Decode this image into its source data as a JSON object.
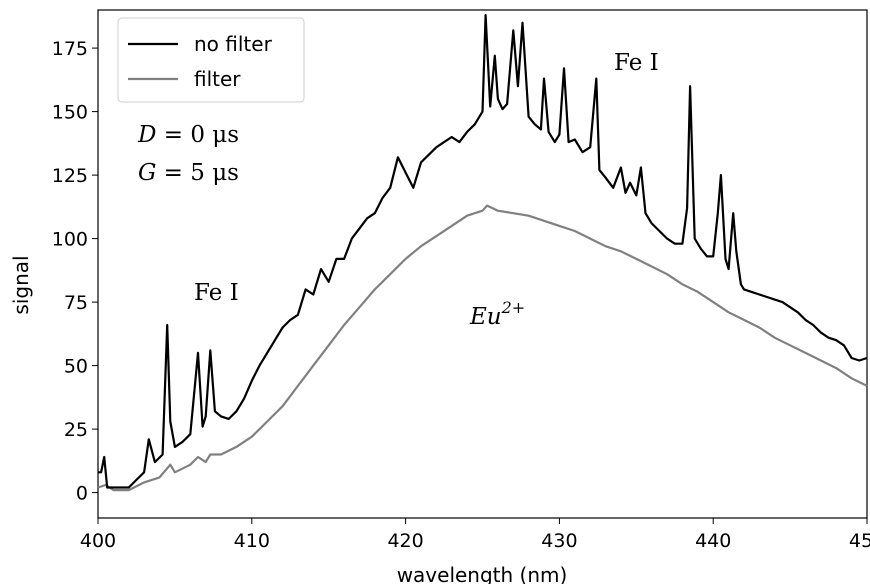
{
  "chart_data": {
    "type": "line",
    "xlabel": "wavelength (nm)",
    "ylabel": "signal",
    "xlim": [
      400,
      450
    ],
    "ylim": [
      -10,
      190
    ],
    "xticks": [
      400,
      410,
      420,
      430,
      440,
      450
    ],
    "yticks": [
      0,
      25,
      50,
      75,
      100,
      125,
      150,
      175
    ],
    "grid": false,
    "legend_position": "top-left",
    "series": [
      {
        "name": "no filter",
        "color": "#000000",
        "x": [
          400.0,
          400.2,
          400.4,
          400.6,
          401.0,
          401.5,
          402.0,
          402.5,
          403.0,
          403.3,
          403.7,
          404.2,
          404.5,
          404.7,
          405.0,
          405.5,
          406.0,
          406.5,
          406.8,
          407.0,
          407.3,
          407.6,
          408.0,
          408.5,
          409.0,
          409.5,
          410.0,
          410.5,
          411.0,
          411.5,
          412.0,
          412.5,
          413.0,
          413.5,
          414.0,
          414.5,
          415.0,
          415.5,
          416.0,
          416.5,
          417.0,
          417.5,
          418.0,
          418.5,
          419.0,
          419.5,
          420.0,
          420.5,
          421.0,
          421.5,
          422.0,
          422.5,
          423.0,
          423.5,
          424.0,
          424.5,
          425.0,
          425.2,
          425.5,
          425.8,
          426.0,
          426.3,
          426.6,
          427.0,
          427.3,
          427.6,
          428.0,
          428.4,
          428.8,
          429.0,
          429.3,
          429.7,
          430.0,
          430.3,
          430.6,
          431.0,
          431.5,
          432.0,
          432.4,
          432.6,
          433.0,
          433.5,
          434.0,
          434.3,
          434.6,
          435.0,
          435.3,
          435.6,
          436.0,
          436.5,
          437.0,
          437.5,
          438.0,
          438.3,
          438.5,
          438.8,
          439.2,
          439.6,
          440.0,
          440.3,
          440.5,
          440.8,
          441.0,
          441.3,
          441.5,
          441.8,
          442.0,
          442.5,
          443.0,
          443.5,
          444.0,
          444.5,
          445.0,
          445.5,
          446.0,
          446.5,
          447.0,
          447.5,
          448.0,
          448.5,
          449.0,
          449.5,
          450.0
        ],
        "y": [
          8,
          8,
          14,
          2,
          2,
          2,
          2,
          5,
          8,
          21,
          12,
          15,
          66,
          28,
          18,
          20,
          23,
          55,
          26,
          30,
          56,
          32,
          30,
          29,
          32,
          37,
          44,
          50,
          55,
          60,
          65,
          68,
          70,
          80,
          78,
          88,
          83,
          92,
          92,
          100,
          104,
          108,
          110,
          116,
          120,
          132,
          126,
          120,
          130,
          133,
          136,
          138,
          140,
          138,
          142,
          145,
          150,
          188,
          152,
          172,
          155,
          151,
          153,
          182,
          160,
          185,
          148,
          145,
          143,
          163,
          142,
          138,
          141,
          167,
          138,
          139,
          134,
          136,
          163,
          127,
          124,
          120,
          128,
          118,
          122,
          117,
          128,
          110,
          106,
          103,
          100,
          98,
          98,
          112,
          160,
          100,
          96,
          93,
          93,
          110,
          125,
          92,
          88,
          110,
          95,
          82,
          80,
          79,
          78,
          77,
          76,
          75,
          73,
          71,
          68,
          66,
          63,
          61,
          60,
          58,
          53,
          52,
          53
        ]
      },
      {
        "name": "filter",
        "color": "#808080",
        "x": [
          400.0,
          400.5,
          401.0,
          402.0,
          403.0,
          404.0,
          404.7,
          405.0,
          406.0,
          406.5,
          407.0,
          407.3,
          408.0,
          409.0,
          410.0,
          411.0,
          412.0,
          413.0,
          414.0,
          415.0,
          416.0,
          417.0,
          418.0,
          419.0,
          420.0,
          421.0,
          422.0,
          423.0,
          424.0,
          425.0,
          425.3,
          426.0,
          427.0,
          428.0,
          429.0,
          430.0,
          431.0,
          432.0,
          433.0,
          434.0,
          435.0,
          436.0,
          437.0,
          438.0,
          439.0,
          440.0,
          441.0,
          442.0,
          443.0,
          444.0,
          445.0,
          446.0,
          447.0,
          448.0,
          449.0,
          450.0
        ],
        "y": [
          2,
          3,
          1,
          1,
          4,
          6,
          11,
          8,
          11,
          14,
          12,
          15,
          15,
          18,
          22,
          28,
          34,
          42,
          50,
          58,
          66,
          73,
          80,
          86,
          92,
          97,
          101,
          105,
          109,
          111,
          113,
          111,
          110,
          109,
          107,
          105,
          103,
          100,
          97,
          95,
          92,
          89,
          86,
          82,
          79,
          75,
          71,
          68,
          65,
          61,
          58,
          55,
          52,
          49,
          45,
          42
        ]
      }
    ],
    "annotations": {
      "fe_left": "Fe I",
      "fe_right": "Fe I",
      "d_var": "D",
      "d_rest": " = 0 μs",
      "g_var": "G",
      "g_rest": " = 5 μs",
      "eu_base": "Eu",
      "eu_sup": "2+"
    }
  }
}
